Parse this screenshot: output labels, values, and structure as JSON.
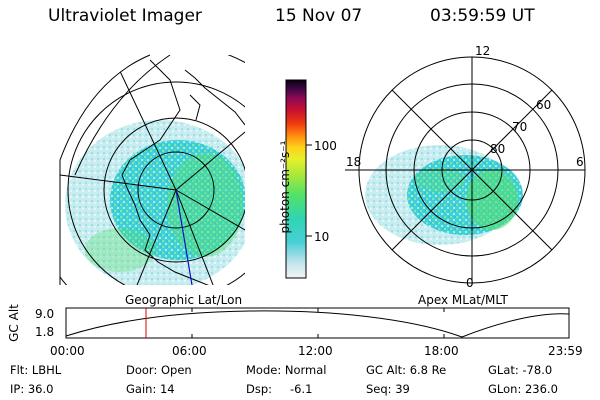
{
  "header": {
    "instrument": "Ultraviolet Imager",
    "date": "15 Nov 07",
    "time": "03:59:59 UT"
  },
  "colorbar": {
    "unit_label": "photon cm⁻²s⁻¹",
    "ticks": [
      "100",
      "10"
    ]
  },
  "geo_map": {
    "caption": "Geographic Lat/Lon"
  },
  "apex_map": {
    "caption": "Apex MLat/MLT",
    "mlt_labels": {
      "top": "12",
      "left": "18",
      "right": "6",
      "bottom": "0"
    },
    "lat_labels": [
      "60",
      "70",
      "80"
    ]
  },
  "altitude_plot": {
    "ylabel": "GC Alt",
    "yticks": [
      "9.0",
      "1.8"
    ],
    "xticks": [
      "00:00",
      "06:00",
      "12:00",
      "18:00",
      "23:59"
    ],
    "current_time_fraction": 0.1667
  },
  "status": {
    "filter": "Flt: LBHL",
    "door": "Door: Open",
    "mode": "Mode: Normal",
    "gc_alt": "GC Alt: 6.8 Re",
    "glat": "GLat: -78.0",
    "ip": "IP: 36.0",
    "gain": "Gain: 14",
    "dsp_label": "Dsp:",
    "dsp_value": "-6.1",
    "seq": "Seq: 39",
    "glon": "GLon: 236.0"
  }
}
